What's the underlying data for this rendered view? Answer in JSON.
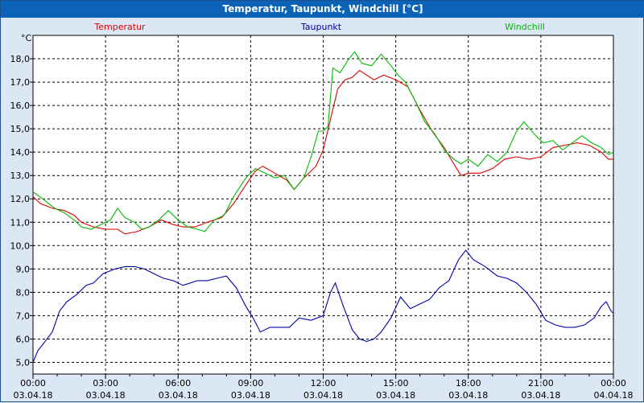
{
  "window": {
    "title": "Temperatur, Taupunkt, Windchill [°C]"
  },
  "chart_data": {
    "type": "line",
    "unit": "°C",
    "ylim": [
      4.5,
      19.0
    ],
    "yticks": [
      "5,0",
      "6,0",
      "7,0",
      "8,0",
      "9,0",
      "10,0",
      "11,0",
      "12,0",
      "13,0",
      "14,0",
      "15,0",
      "16,0",
      "17,0",
      "18,0"
    ],
    "xlim": [
      0,
      24
    ],
    "xticks": [
      {
        "time": "00:00",
        "date": "03.04.18",
        "h": 0
      },
      {
        "time": "03:00",
        "date": "03.04.18",
        "h": 3
      },
      {
        "time": "06:00",
        "date": "03.04.18",
        "h": 6
      },
      {
        "time": "09:00",
        "date": "03.04.18",
        "h": 9
      },
      {
        "time": "12:00",
        "date": "03.04.18",
        "h": 12
      },
      {
        "time": "15:00",
        "date": "03.04.18",
        "h": 15
      },
      {
        "time": "18:00",
        "date": "03.04.18",
        "h": 18
      },
      {
        "time": "21:00",
        "date": "03.04.18",
        "h": 21
      },
      {
        "time": "00:00",
        "date": "04.04.18",
        "h": 24
      }
    ],
    "grid": true,
    "legend_position": "top",
    "series": [
      {
        "name": "Temperatur",
        "color": "#e00000",
        "points": [
          [
            0,
            12.1
          ],
          [
            0.3,
            11.8
          ],
          [
            0.8,
            11.6
          ],
          [
            1.3,
            11.5
          ],
          [
            1.7,
            11.3
          ],
          [
            2.0,
            11.0
          ],
          [
            2.5,
            10.8
          ],
          [
            3.0,
            10.7
          ],
          [
            3.5,
            10.7
          ],
          [
            3.8,
            10.5
          ],
          [
            4.3,
            10.6
          ],
          [
            4.8,
            10.8
          ],
          [
            5.3,
            11.1
          ],
          [
            5.8,
            10.9
          ],
          [
            6.2,
            10.8
          ],
          [
            6.7,
            10.8
          ],
          [
            7.2,
            11.0
          ],
          [
            7.8,
            11.2
          ],
          [
            8.3,
            11.8
          ],
          [
            8.8,
            12.6
          ],
          [
            9.2,
            13.2
          ],
          [
            9.5,
            13.4
          ],
          [
            10.0,
            13.1
          ],
          [
            10.5,
            12.8
          ],
          [
            10.8,
            12.4
          ],
          [
            11.2,
            12.9
          ],
          [
            11.7,
            13.4
          ],
          [
            12.0,
            14.1
          ],
          [
            12.3,
            15.4
          ],
          [
            12.6,
            16.7
          ],
          [
            12.9,
            17.1
          ],
          [
            13.2,
            17.2
          ],
          [
            13.5,
            17.5
          ],
          [
            13.8,
            17.3
          ],
          [
            14.1,
            17.1
          ],
          [
            14.5,
            17.3
          ],
          [
            15.0,
            17.1
          ],
          [
            15.5,
            16.8
          ],
          [
            16.0,
            15.8
          ],
          [
            16.5,
            14.9
          ],
          [
            17.0,
            14.2
          ],
          [
            17.4,
            13.5
          ],
          [
            17.7,
            13.0
          ],
          [
            18.0,
            13.1
          ],
          [
            18.5,
            13.1
          ],
          [
            19.0,
            13.3
          ],
          [
            19.5,
            13.7
          ],
          [
            20.0,
            13.8
          ],
          [
            20.5,
            13.7
          ],
          [
            21.0,
            13.8
          ],
          [
            21.5,
            14.2
          ],
          [
            22.0,
            14.3
          ],
          [
            22.5,
            14.4
          ],
          [
            23.0,
            14.3
          ],
          [
            23.5,
            14.0
          ],
          [
            23.8,
            13.7
          ],
          [
            24,
            13.7
          ]
        ]
      },
      {
        "name": "Taupunkt",
        "color": "#0000aa",
        "points": [
          [
            0,
            5.0
          ],
          [
            0.2,
            5.5
          ],
          [
            0.5,
            5.9
          ],
          [
            0.8,
            6.3
          ],
          [
            1.1,
            7.2
          ],
          [
            1.4,
            7.6
          ],
          [
            1.8,
            7.9
          ],
          [
            2.2,
            8.3
          ],
          [
            2.5,
            8.4
          ],
          [
            2.9,
            8.8
          ],
          [
            3.4,
            9.0
          ],
          [
            3.8,
            9.1
          ],
          [
            4.2,
            9.1
          ],
          [
            4.6,
            9.0
          ],
          [
            5.0,
            8.8
          ],
          [
            5.4,
            8.6
          ],
          [
            5.8,
            8.5
          ],
          [
            6.2,
            8.3
          ],
          [
            6.5,
            8.4
          ],
          [
            6.8,
            8.5
          ],
          [
            7.2,
            8.5
          ],
          [
            7.6,
            8.6
          ],
          [
            8.0,
            8.7
          ],
          [
            8.4,
            8.2
          ],
          [
            8.8,
            7.4
          ],
          [
            9.1,
            6.9
          ],
          [
            9.4,
            6.3
          ],
          [
            9.8,
            6.5
          ],
          [
            10.2,
            6.5
          ],
          [
            10.6,
            6.5
          ],
          [
            11.0,
            6.9
          ],
          [
            11.5,
            6.8
          ],
          [
            12.0,
            7.0
          ],
          [
            12.3,
            8.0
          ],
          [
            12.5,
            8.4
          ],
          [
            12.8,
            7.5
          ],
          [
            13.2,
            6.4
          ],
          [
            13.5,
            6.0
          ],
          [
            13.8,
            5.9
          ],
          [
            14.1,
            6.0
          ],
          [
            14.4,
            6.3
          ],
          [
            14.8,
            6.9
          ],
          [
            15.2,
            7.8
          ],
          [
            15.6,
            7.3
          ],
          [
            16.0,
            7.5
          ],
          [
            16.4,
            7.7
          ],
          [
            16.8,
            8.2
          ],
          [
            17.2,
            8.5
          ],
          [
            17.6,
            9.4
          ],
          [
            17.9,
            9.8
          ],
          [
            18.2,
            9.4
          ],
          [
            18.7,
            9.1
          ],
          [
            19.2,
            8.7
          ],
          [
            19.6,
            8.6
          ],
          [
            20.0,
            8.4
          ],
          [
            20.4,
            8.0
          ],
          [
            20.8,
            7.5
          ],
          [
            21.2,
            6.8
          ],
          [
            21.6,
            6.6
          ],
          [
            22.0,
            6.5
          ],
          [
            22.4,
            6.5
          ],
          [
            22.8,
            6.6
          ],
          [
            23.2,
            6.9
          ],
          [
            23.5,
            7.4
          ],
          [
            23.7,
            7.6
          ],
          [
            23.9,
            7.2
          ],
          [
            24,
            7.1
          ]
        ]
      },
      {
        "name": "Windchill",
        "color": "#00bb00",
        "points": [
          [
            0,
            12.3
          ],
          [
            0.4,
            12.0
          ],
          [
            0.9,
            11.6
          ],
          [
            1.3,
            11.4
          ],
          [
            1.7,
            11.1
          ],
          [
            2.0,
            10.8
          ],
          [
            2.4,
            10.7
          ],
          [
            2.8,
            10.9
          ],
          [
            3.2,
            11.1
          ],
          [
            3.5,
            11.6
          ],
          [
            3.8,
            11.2
          ],
          [
            4.2,
            11.0
          ],
          [
            4.5,
            10.7
          ],
          [
            4.8,
            10.8
          ],
          [
            5.2,
            11.1
          ],
          [
            5.6,
            11.5
          ],
          [
            6.0,
            11.1
          ],
          [
            6.4,
            10.8
          ],
          [
            6.8,
            10.7
          ],
          [
            7.1,
            10.6
          ],
          [
            7.5,
            11.1
          ],
          [
            7.9,
            11.3
          ],
          [
            8.3,
            12.1
          ],
          [
            8.8,
            12.9
          ],
          [
            9.2,
            13.3
          ],
          [
            9.6,
            13.1
          ],
          [
            10.0,
            12.9
          ],
          [
            10.4,
            13.0
          ],
          [
            10.8,
            12.4
          ],
          [
            11.2,
            12.9
          ],
          [
            11.5,
            13.8
          ],
          [
            11.8,
            14.9
          ],
          [
            12.0,
            14.9
          ],
          [
            12.2,
            15.1
          ],
          [
            12.4,
            17.6
          ],
          [
            12.7,
            17.4
          ],
          [
            13.0,
            17.9
          ],
          [
            13.3,
            18.3
          ],
          [
            13.6,
            17.8
          ],
          [
            14.0,
            17.7
          ],
          [
            14.4,
            18.2
          ],
          [
            14.8,
            17.7
          ],
          [
            15.1,
            17.3
          ],
          [
            15.4,
            17.0
          ],
          [
            15.8,
            16.2
          ],
          [
            16.2,
            15.3
          ],
          [
            16.6,
            14.8
          ],
          [
            17.0,
            14.1
          ],
          [
            17.4,
            13.7
          ],
          [
            17.7,
            13.5
          ],
          [
            18.0,
            13.7
          ],
          [
            18.4,
            13.4
          ],
          [
            18.8,
            13.9
          ],
          [
            19.2,
            13.6
          ],
          [
            19.6,
            14.0
          ],
          [
            20.0,
            14.9
          ],
          [
            20.3,
            15.3
          ],
          [
            20.7,
            14.8
          ],
          [
            21.1,
            14.4
          ],
          [
            21.5,
            14.5
          ],
          [
            21.9,
            14.1
          ],
          [
            22.3,
            14.4
          ],
          [
            22.7,
            14.7
          ],
          [
            23.1,
            14.4
          ],
          [
            23.5,
            14.2
          ],
          [
            23.8,
            13.9
          ],
          [
            24,
            14.0
          ]
        ]
      }
    ]
  }
}
